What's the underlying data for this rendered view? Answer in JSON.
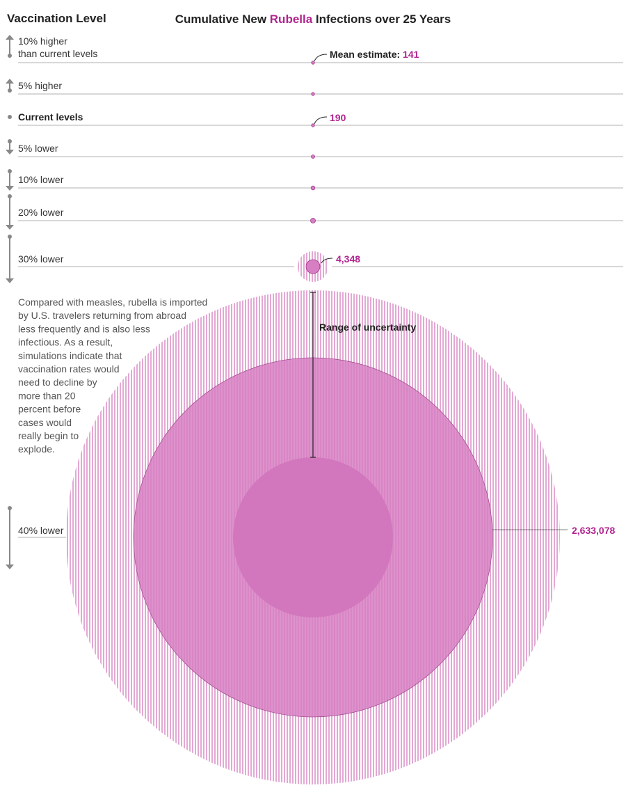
{
  "colors": {
    "accent": "#b0248f",
    "range_fill": "#e6b0d8",
    "mid_fill": "#d77fc2",
    "inner_fill": "#d277bd",
    "gray": "#888888",
    "rule": "#999999"
  },
  "header": {
    "left": "Vaccination Level",
    "title_pre": "Cumulative New ",
    "title_accent": "Rubella",
    "title_post": " Infections over 25 Years"
  },
  "annotations": {
    "mean_label": "Mean estimate: ",
    "range_label": "Range of uncertainty"
  },
  "note": [
    "Compared with measles, rubella is imported",
    "by U.S. travelers returning from abroad",
    "less frequently and is also less",
    "infectious. As a result,",
    "simulations indicate that",
    "vaccination rates would",
    "need to decline by",
    "more than 20",
    "percent before",
    "cases would",
    "really begin to",
    "explode."
  ],
  "chart_data": {
    "type": "bubble",
    "title": "Cumulative New Rubella Infections over 25 Years",
    "categories": [
      "10% higher than current levels",
      "5% higher",
      "Current levels",
      "5% lower",
      "10% lower",
      "20% lower",
      "30% lower",
      "40% lower"
    ],
    "levels": [
      {
        "id": "p10",
        "label_lines": [
          "10% higher",
          "than current levels"
        ],
        "direction": "up",
        "change_pct": 10,
        "bold": false,
        "mean": 141,
        "mean_label": "141",
        "range_high": null
      },
      {
        "id": "p5",
        "label_lines": [
          "5% higher"
        ],
        "direction": "up",
        "change_pct": 5,
        "bold": false,
        "mean": null,
        "mean_label": null,
        "range_high": null
      },
      {
        "id": "cur",
        "label_lines": [
          "Current levels"
        ],
        "direction": "none",
        "change_pct": 0,
        "bold": true,
        "mean": 190,
        "mean_label": "190",
        "range_high": null
      },
      {
        "id": "m5",
        "label_lines": [
          "5% lower"
        ],
        "direction": "down",
        "change_pct": 5,
        "bold": false,
        "mean": null,
        "mean_label": null,
        "range_high": null
      },
      {
        "id": "m10",
        "label_lines": [
          "10% lower"
        ],
        "direction": "down",
        "change_pct": 10,
        "bold": false,
        "mean": null,
        "mean_label": null,
        "range_high": null
      },
      {
        "id": "m20",
        "label_lines": [
          "20% lower"
        ],
        "direction": "down",
        "change_pct": 20,
        "bold": false,
        "mean": null,
        "mean_label": null,
        "range_high": null
      },
      {
        "id": "m30",
        "label_lines": [
          "30% lower"
        ],
        "direction": "down",
        "change_pct": 30,
        "bold": false,
        "mean": 4348,
        "mean_label": "4,348",
        "range_high": null
      },
      {
        "id": "m40",
        "label_lines": [
          "40% lower"
        ],
        "direction": "down",
        "change_pct": 40,
        "bold": false,
        "mean": 2633078,
        "mean_label": "2,633,078",
        "range_high": null
      }
    ]
  }
}
